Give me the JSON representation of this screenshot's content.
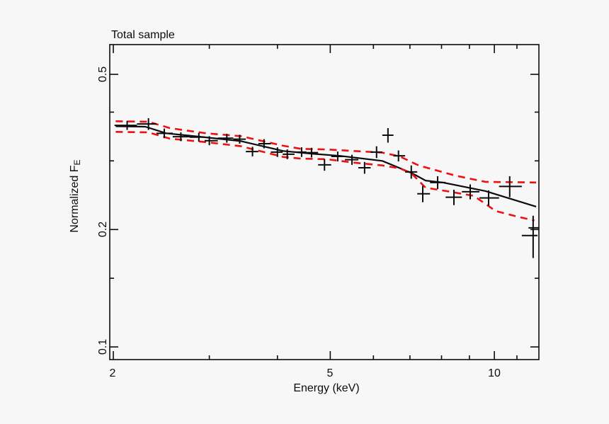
{
  "window": {
    "background": "#f7f7f7"
  },
  "chart_data": {
    "type": "scatter",
    "title": "Total sample",
    "xlabel": "Energy (keV)",
    "ylabel": "Normalized F",
    "ylabel_subscript": "E",
    "x_scale": "log",
    "y_scale": "log",
    "xlim": [
      1.97,
      12.07
    ],
    "ylim": [
      0.0928,
      0.596
    ],
    "grid": false,
    "legend": "none",
    "x_ticks": [
      2,
      5,
      10
    ],
    "x_tick_labels": [
      "2",
      "5",
      "10"
    ],
    "x_minor_ticks": [
      3,
      4,
      6,
      7,
      8,
      9,
      11
    ],
    "y_ticks": [
      0.5,
      0.2,
      0.1
    ],
    "y_tick_labels": [
      "0.5",
      "0.2",
      "0.1"
    ],
    "y_minor_ticks": [
      0.15,
      0.3,
      0.4
    ],
    "colors": {
      "data": "#0c0c0c",
      "model": "#0c0c0c",
      "bounds": "#ee1111",
      "frame": "#0c0c0c"
    },
    "series": [
      {
        "name": "binned-spectrum-data",
        "style": "error-bar-cross",
        "color": "#0c0c0c",
        "points_format": [
          "e_lo_keV",
          "e_keV",
          "e_hi_keV",
          "f_norm",
          "f_err"
        ],
        "points": [
          [
            2.01,
            2.12,
            2.21,
            0.37,
            0.01
          ],
          [
            2.21,
            2.32,
            2.4,
            0.373,
            0.013
          ],
          [
            2.4,
            2.48,
            2.57,
            0.353,
            0.01
          ],
          [
            2.57,
            2.66,
            2.76,
            0.346,
            0.009
          ],
          [
            2.76,
            2.87,
            2.94,
            0.345,
            0.009
          ],
          [
            2.94,
            3.0,
            3.11,
            0.338,
            0.009
          ],
          [
            3.11,
            3.23,
            3.32,
            0.343,
            0.009
          ],
          [
            3.32,
            3.41,
            3.5,
            0.341,
            0.009
          ],
          [
            3.5,
            3.6,
            3.69,
            0.317,
            0.009
          ],
          [
            3.69,
            3.78,
            3.89,
            0.332,
            0.009
          ],
          [
            3.89,
            4.0,
            4.09,
            0.316,
            0.009
          ],
          [
            4.09,
            4.17,
            4.3,
            0.312,
            0.009
          ],
          [
            4.3,
            4.43,
            4.52,
            0.316,
            0.009
          ],
          [
            4.52,
            4.62,
            4.75,
            0.315,
            0.009
          ],
          [
            4.75,
            4.88,
            5.02,
            0.293,
            0.01
          ],
          [
            5.02,
            5.16,
            5.32,
            0.308,
            0.009
          ],
          [
            5.32,
            5.48,
            5.63,
            0.302,
            0.009
          ],
          [
            5.63,
            5.78,
            5.93,
            0.288,
            0.01
          ],
          [
            5.93,
            6.08,
            6.23,
            0.316,
            0.011
          ],
          [
            6.23,
            6.38,
            6.53,
            0.349,
            0.015
          ],
          [
            6.53,
            6.67,
            6.86,
            0.309,
            0.01
          ],
          [
            6.86,
            7.04,
            7.22,
            0.281,
            0.011
          ],
          [
            7.22,
            7.39,
            7.62,
            0.247,
            0.012
          ],
          [
            7.62,
            7.87,
            8.14,
            0.264,
            0.01
          ],
          [
            8.14,
            8.43,
            8.72,
            0.242,
            0.011
          ],
          [
            8.72,
            9.03,
            9.39,
            0.25,
            0.011
          ],
          [
            9.39,
            9.76,
            10.2,
            0.241,
            0.011
          ],
          [
            10.2,
            10.67,
            11.23,
            0.258,
            0.016
          ],
          [
            11.23,
            11.78,
            12.0,
            0.193,
            0.024
          ]
        ],
        "clipped_bin": {
          "e_lo": 11.55,
          "e_hi": 12.07,
          "f": 0.202
        }
      },
      {
        "name": "model-line",
        "style": "solid",
        "color": "#0c0c0c",
        "points": [
          [
            2.02,
            0.368
          ],
          [
            2.29,
            0.367
          ],
          [
            2.5,
            0.353
          ],
          [
            2.88,
            0.346
          ],
          [
            3.43,
            0.337
          ],
          [
            4.1,
            0.318
          ],
          [
            4.62,
            0.313
          ],
          [
            5.21,
            0.309
          ],
          [
            6.23,
            0.3
          ],
          [
            7.06,
            0.279
          ],
          [
            7.48,
            0.267
          ],
          [
            8.04,
            0.264
          ],
          [
            9.63,
            0.251
          ],
          [
            11.93,
            0.229
          ]
        ]
      },
      {
        "name": "upper-confidence-bound",
        "style": "dashed",
        "color": "#ee1111",
        "points": [
          [
            2.02,
            0.379
          ],
          [
            2.32,
            0.378
          ],
          [
            2.54,
            0.364
          ],
          [
            2.96,
            0.353
          ],
          [
            3.43,
            0.347
          ],
          [
            4.1,
            0.328
          ],
          [
            4.42,
            0.322
          ],
          [
            4.92,
            0.321
          ],
          [
            5.52,
            0.318
          ],
          [
            6.23,
            0.315
          ],
          [
            6.71,
            0.308
          ],
          [
            7.26,
            0.292
          ],
          [
            8.48,
            0.275
          ],
          [
            9.63,
            0.265
          ],
          [
            11.93,
            0.264
          ]
        ]
      },
      {
        "name": "lower-confidence-bound",
        "style": "dashed",
        "color": "#ee1111",
        "points": [
          [
            2.02,
            0.356
          ],
          [
            2.32,
            0.355
          ],
          [
            2.54,
            0.342
          ],
          [
            2.96,
            0.335
          ],
          [
            3.43,
            0.327
          ],
          [
            4.1,
            0.307
          ],
          [
            4.42,
            0.304
          ],
          [
            4.92,
            0.303
          ],
          [
            5.52,
            0.297
          ],
          [
            6.23,
            0.292
          ],
          [
            6.71,
            0.287
          ],
          [
            7.04,
            0.279
          ],
          [
            7.48,
            0.256
          ],
          [
            8.16,
            0.251
          ],
          [
            9.17,
            0.244
          ],
          [
            10.06,
            0.223
          ],
          [
            11.0,
            0.216
          ],
          [
            11.84,
            0.211
          ]
        ]
      }
    ]
  }
}
